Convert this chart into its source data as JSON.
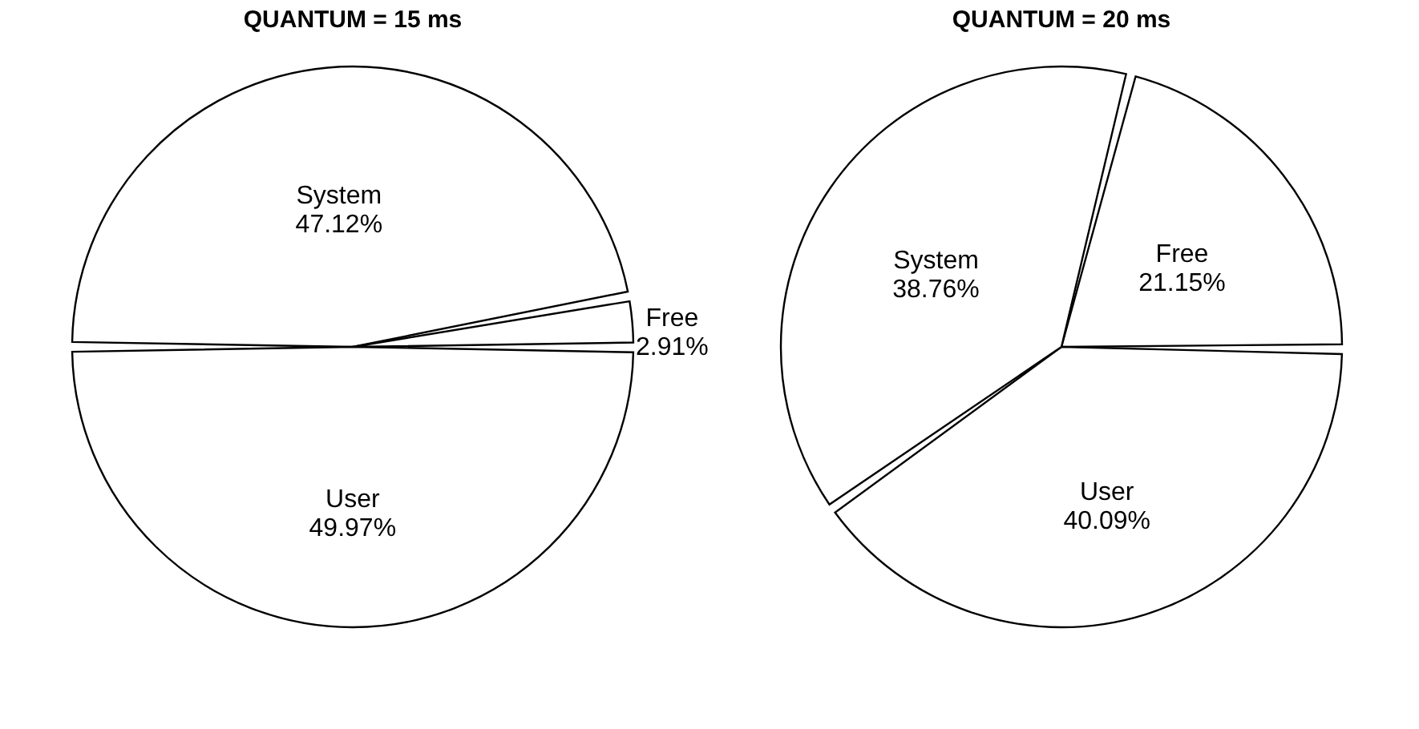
{
  "chart_data": [
    {
      "type": "pie",
      "title": "QUANTUM = 15 ms",
      "categories": [
        "System",
        "Free",
        "User"
      ],
      "values": [
        47.12,
        2.91,
        49.97
      ],
      "colors": [
        "#ffffff",
        "#ffffff",
        "#ffffff"
      ],
      "value_labels": [
        "47.12%",
        "2.91%",
        "49.97%"
      ]
    },
    {
      "type": "pie",
      "title": "QUANTUM = 20 ms",
      "categories": [
        "Free",
        "User",
        "System"
      ],
      "values": [
        21.15,
        40.09,
        38.76
      ],
      "colors": [
        "#ffffff",
        "#ffffff",
        "#ffffff"
      ],
      "value_labels": [
        "21.15%",
        "40.09%",
        "38.76%"
      ]
    }
  ]
}
